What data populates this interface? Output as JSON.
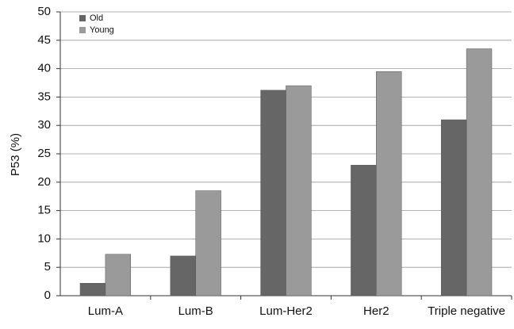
{
  "chart_data": {
    "type": "bar",
    "y_label": "P53 (%)",
    "categories": [
      "Lum-A",
      "Lum-B",
      "Lum-Her2",
      "Her2",
      "Triple negative"
    ],
    "series": [
      {
        "name": "Old",
        "color": "#666666",
        "values": [
          2.2,
          7,
          36.2,
          23,
          31
        ]
      },
      {
        "name": "Young",
        "color": "#9a9a9a",
        "values": [
          7.3,
          18.5,
          37,
          39.5,
          43.5
        ]
      }
    ],
    "ylim": [
      0,
      50
    ],
    "yticks": [
      0,
      5,
      10,
      15,
      20,
      25,
      30,
      35,
      40,
      45,
      50
    ],
    "grid": true,
    "legend": "top-left"
  }
}
